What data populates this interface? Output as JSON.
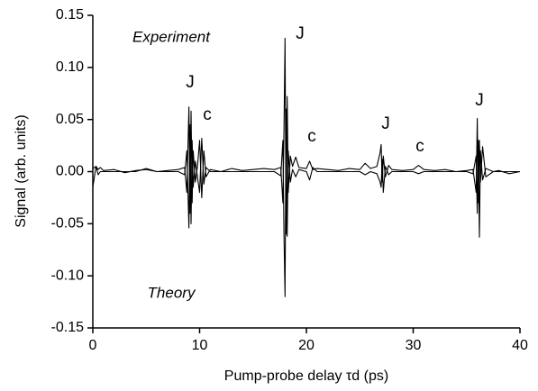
{
  "chart_data": {
    "type": "line",
    "x_label": "Pump-probe delay τd (ps)",
    "y_label": "Signal (arb. units)",
    "annotations": [
      "Experiment",
      "Theory",
      "J",
      "c",
      "J",
      "c",
      "J",
      "c",
      "J"
    ],
    "x": [
      0,
      0.3,
      0.5,
      0.7,
      1,
      2,
      3,
      4,
      5,
      6,
      7,
      8,
      8.6,
      8.8,
      9.0,
      9.1,
      9.2,
      9.3,
      9.4,
      9.6,
      9.8,
      10.0,
      10.2,
      10.4,
      10.6,
      11,
      12,
      13,
      14,
      15,
      16,
      17,
      17.6,
      17.8,
      17.9,
      18.0,
      18.1,
      18.2,
      18.3,
      18.5,
      18.7,
      19,
      19.3,
      20,
      20.3,
      20.6,
      21,
      22,
      23,
      24,
      25,
      25.5,
      26,
      26.6,
      26.9,
      27.0,
      27.1,
      27.2,
      27.4,
      27.7,
      28,
      29,
      30,
      30.5,
      31,
      32,
      33,
      34,
      35,
      35.6,
      35.9,
      36.0,
      36.1,
      36.2,
      36.3,
      36.5,
      36.8,
      37.5,
      38,
      39,
      40
    ],
    "series": [
      {
        "color": "#000000",
        "values": [
          0.003,
          0.005,
          0.002,
          0.004,
          0.001,
          0.002,
          -0.001,
          0.001,
          0.002,
          0,
          0.001,
          0.002,
          0.004,
          -0.02,
          0.062,
          -0.04,
          0.058,
          -0.03,
          0.02,
          -0.01,
          0.005,
          0.03,
          -0.025,
          0.02,
          -0.005,
          0.002,
          0,
          0.003,
          0.001,
          0.002,
          0.003,
          0.002,
          0.004,
          -0.03,
          0.04,
          0.128,
          -0.06,
          0.072,
          -0.02,
          0.015,
          0.005,
          0.014,
          0.004,
          0.003,
          0.01,
          0.002,
          0.003,
          0.002,
          0.001,
          0.003,
          0.002,
          0.008,
          0.003,
          0.005,
          0.018,
          0.026,
          -0.01,
          0.015,
          -0.005,
          0.006,
          0.002,
          0.001,
          0.002,
          0.006,
          0.002,
          0.001,
          0.002,
          0,
          0.001,
          0.002,
          -0.02,
          0.051,
          -0.03,
          0.03,
          -0.01,
          0.024,
          -0.005,
          0,
          0.001,
          -0.002,
          0
        ]
      },
      {
        "color": "#000000",
        "values": [
          -0.015,
          0.005,
          -0.003,
          0,
          0,
          0,
          0,
          0,
          0.003,
          0,
          0,
          0,
          -0.003,
          0.02,
          -0.054,
          0.045,
          -0.05,
          0.03,
          -0.015,
          0.01,
          -0.005,
          -0.02,
          0.032,
          -0.012,
          0.004,
          0,
          0,
          0,
          0,
          0,
          0,
          0,
          -0.004,
          0.03,
          -0.06,
          -0.12,
          0.06,
          -0.062,
          0.02,
          -0.01,
          0.002,
          -0.005,
          0.002,
          0,
          -0.008,
          0.004,
          0,
          0,
          0,
          0,
          0,
          -0.003,
          0,
          -0.002,
          -0.01,
          -0.015,
          0.012,
          -0.02,
          0.005,
          -0.003,
          0,
          0,
          0,
          -0.002,
          0,
          0,
          0,
          0,
          0,
          -0.002,
          0.015,
          -0.04,
          0.03,
          -0.063,
          0.02,
          -0.008,
          0.003,
          0,
          0,
          0,
          0
        ]
      }
    ],
    "xlim": [
      0,
      40
    ],
    "xticks": [
      0,
      10,
      20,
      30,
      40
    ],
    "ylim": [
      -0.15,
      0.15
    ],
    "yticks": [
      {
        "value": -0.15,
        "label": "-0.15"
      },
      {
        "value": -0.1,
        "label": "-0.10"
      },
      {
        "value": -0.05,
        "label": "-0.05"
      },
      {
        "value": 0,
        "label": "0.00"
      },
      {
        "value": 0.05,
        "label": "0.05"
      },
      {
        "value": 0.1,
        "label": "0.10"
      },
      {
        "value": 0.15,
        "label": "0.15"
      }
    ],
    "grid": false
  }
}
